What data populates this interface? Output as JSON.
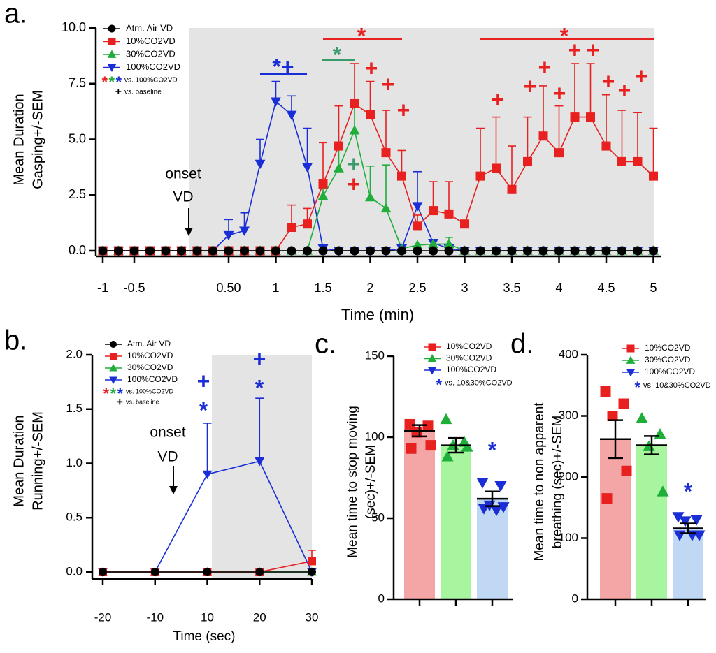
{
  "chart_data": [
    {
      "type": "line",
      "panel": "a.",
      "ylabel": [
        "Mean Duration",
        "Gasping+/-SEM"
      ],
      "xlabel": "Time (min)",
      "onset": [
        "onset",
        "VD"
      ],
      "categories": [
        "-1",
        null,
        "-0.5",
        null,
        null,
        null,
        null,
        null,
        "0.50",
        null,
        null,
        "1",
        null,
        null,
        "1.5",
        null,
        null,
        "2",
        null,
        null,
        "2.5",
        null,
        null,
        "3",
        null,
        null,
        "3.5",
        null,
        null,
        "4",
        null,
        null,
        "4.5",
        null,
        null,
        "5"
      ],
      "ylim": [
        0,
        10
      ],
      "yticks": [
        {
          "value": 0,
          "label": "0.0"
        },
        {
          "value": 2.5,
          "label": "2.5"
        },
        {
          "value": 5,
          "label": "5.0"
        },
        {
          "value": 7.5,
          "label": "7.5"
        },
        {
          "value": 10,
          "label": "10.0"
        }
      ],
      "series": [
        {
          "name": "Atm. Air VD",
          "color": "#000000",
          "marker": "circle",
          "values": [
            0,
            0,
            0,
            0,
            0,
            0,
            0,
            0,
            0,
            0,
            0,
            0,
            0,
            0,
            0,
            0,
            0,
            0,
            0,
            0,
            0,
            0,
            0,
            0,
            0,
            0,
            0,
            0,
            0,
            0,
            0,
            0,
            0,
            0,
            0,
            0
          ]
        },
        {
          "name": "10%CO2VD",
          "color": "#e8201f",
          "marker": "square",
          "values": [
            0,
            0,
            0,
            0,
            0,
            0,
            0,
            0,
            0,
            0,
            0,
            0,
            1.05,
            1.2,
            3.0,
            4.7,
            6.6,
            6.1,
            4.4,
            3.35,
            1.1,
            1.8,
            1.65,
            1.2,
            3.35,
            3.7,
            2.75,
            4.0,
            5.15,
            4.4,
            6.0,
            6.0,
            4.7,
            4.0,
            4.0,
            3.35
          ],
          "errors": [
            null,
            null,
            null,
            null,
            null,
            null,
            null,
            null,
            null,
            null,
            null,
            null,
            1.0,
            0.7,
            1.85,
            1.8,
            1.8,
            1.5,
            1.9,
            1.15,
            0.5,
            1.3,
            1.45,
            null,
            2.15,
            2.3,
            1.95,
            2.0,
            2.25,
            2.1,
            2.4,
            2.4,
            2.3,
            2.3,
            2.2,
            2.15
          ]
        },
        {
          "name": "30%CO2VD",
          "color": "#1fae3a",
          "marker": "triangle-up",
          "values": [
            0,
            0,
            0,
            0,
            0,
            0,
            0,
            0,
            0,
            0,
            0,
            0,
            0,
            0,
            2.45,
            3.7,
            5.4,
            2.4,
            1.9,
            0.1,
            0.25,
            0.3,
            0.3,
            0,
            0,
            0,
            0,
            0,
            0,
            0,
            0,
            0,
            0,
            0,
            0,
            0
          ],
          "errors": [
            null,
            null,
            null,
            null,
            null,
            null,
            null,
            null,
            null,
            null,
            null,
            null,
            null,
            null,
            0.35,
            1.1,
            1.1,
            1.4,
            1.95,
            null,
            null,
            null,
            0.3,
            null,
            null,
            null,
            null,
            null,
            null,
            null,
            null,
            null,
            null,
            null,
            null,
            null
          ]
        },
        {
          "name": "100%CO2VD",
          "color": "#1a2ed6",
          "marker": "triangle-down",
          "values": [
            0,
            0,
            0,
            0,
            0,
            0,
            0,
            0,
            0.7,
            0.9,
            3.9,
            6.7,
            6.1,
            3.75,
            0.1,
            0,
            0,
            0,
            0,
            0.1,
            2.0,
            0.35,
            0.1,
            0,
            0,
            0,
            0,
            0,
            0,
            0,
            0,
            0,
            0,
            0,
            0,
            0
          ],
          "errors": [
            null,
            null,
            null,
            null,
            null,
            null,
            null,
            null,
            0.7,
            0.8,
            1.1,
            0.9,
            0.85,
            1.75,
            null,
            null,
            null,
            null,
            null,
            null,
            1.55,
            0.1,
            null,
            null,
            null,
            null,
            null,
            null,
            null,
            null,
            null,
            null,
            null,
            null,
            null,
            null
          ]
        }
      ],
      "legend_notes": [
        {
          "marks": [
            {
              "text": "*",
              "color": "#e8201f"
            },
            {
              "text": "*",
              "color": "#1fae3a"
            },
            {
              "text": "*",
              "color": "#1a2ed6"
            }
          ],
          "text": "vs. 100%CO2VD"
        },
        {
          "marks": [
            {
              "text": "+",
              "color": "#000000"
            }
          ],
          "text": "vs. baseline"
        }
      ],
      "annotations": [
        {
          "text": "*+",
          "color": "#1a2ed6"
        },
        {
          "text": "*",
          "color": "#3a9a6a"
        },
        {
          "text": "*",
          "color": "#e8201f"
        },
        {
          "text": "*",
          "color": "#e8201f"
        },
        {
          "text": "+",
          "color": "#3a9a6a"
        },
        {
          "text": "+",
          "color": "#e8201f"
        },
        {
          "text": "+",
          "color": "#e8201f"
        },
        {
          "text": "+",
          "color": "#e8201f"
        },
        {
          "text": "+",
          "color": "#e8201f"
        },
        {
          "text": "+",
          "color": "#e8201f"
        },
        {
          "text": "+",
          "color": "#e8201f"
        },
        {
          "text": "+",
          "color": "#e8201f"
        },
        {
          "text": "+",
          "color": "#e8201f"
        },
        {
          "text": "+",
          "color": "#e8201f"
        },
        {
          "text": "+",
          "color": "#e8201f"
        },
        {
          "text": "+",
          "color": "#e8201f"
        },
        {
          "text": "+",
          "color": "#e8201f"
        },
        {
          "text": "+",
          "color": "#e8201f"
        }
      ]
    },
    {
      "type": "line",
      "panel": "b.",
      "ylabel": [
        "Mean Duration",
        "Running+/-SEM"
      ],
      "xlabel": "Time (sec)",
      "onset": [
        "onset",
        "VD"
      ],
      "categories": [
        "-20",
        "-10",
        "10",
        "20",
        "30"
      ],
      "ylim": [
        0,
        2
      ],
      "yticks": [
        {
          "value": 0,
          "label": "0.0"
        },
        {
          "value": 0.5,
          "label": "0.5"
        },
        {
          "value": 1,
          "label": "1.0"
        },
        {
          "value": 1.5,
          "label": "1.5"
        },
        {
          "value": 2,
          "label": "2.0"
        }
      ],
      "series": [
        {
          "name": "Atm. Air VD",
          "color": "#000000",
          "marker": "circle",
          "values": [
            0,
            0,
            0,
            0,
            0
          ]
        },
        {
          "name": "10%CO2VD",
          "color": "#e8201f",
          "marker": "square",
          "values": [
            0,
            0,
            0,
            0,
            0.1
          ],
          "errors": [
            null,
            null,
            null,
            null,
            0.1
          ]
        },
        {
          "name": "30%CO2VD",
          "color": "#1fae3a",
          "marker": "triangle-up",
          "values": [
            0,
            0,
            0,
            0,
            0
          ]
        },
        {
          "name": "100%CO2VD",
          "color": "#1a2ed6",
          "marker": "triangle-down",
          "values": [
            0,
            0,
            0.9,
            1.02,
            0
          ],
          "errors": [
            null,
            null,
            0.47,
            0.58,
            null
          ]
        }
      ],
      "legend_notes": [
        {
          "marks": [
            {
              "text": "*",
              "color": "#e8201f"
            },
            {
              "text": "*",
              "color": "#1fae3a"
            },
            {
              "text": "*",
              "color": "#1a2ed6"
            }
          ],
          "text": "vs. 100%CO2VD"
        },
        {
          "marks": [
            {
              "text": "+",
              "color": "#000000"
            }
          ],
          "text": "vs. baseline"
        }
      ],
      "annotations": [
        {
          "text": "+",
          "color": "#1a2ed6"
        },
        {
          "text": "*",
          "color": "#1a2ed6"
        },
        {
          "text": "+",
          "color": "#1a2ed6"
        },
        {
          "text": "*",
          "color": "#1a2ed6"
        }
      ]
    },
    {
      "type": "bar",
      "panel": "c.",
      "ylabel": [
        "Mean time to stop  moving",
        "(sec)+/-SEM"
      ],
      "ylim": [
        0,
        150
      ],
      "yticks": [
        0,
        50,
        100,
        150
      ],
      "series": [
        {
          "name": "10%CO2VD",
          "color": "#e8201f",
          "bar_color": "#f4a6a6",
          "marker": "square",
          "value": 104,
          "error": 3.5,
          "points": [
            108,
            107,
            103,
            95,
            93
          ]
        },
        {
          "name": "30%CO2VD",
          "color": "#1fae3a",
          "bar_color": "#a8f5a0",
          "marker": "triangle-up",
          "value": 95,
          "error": 4.5,
          "points": [
            111,
            97,
            95,
            94,
            88
          ]
        },
        {
          "name": "100%CO2VD",
          "color": "#1a2ed6",
          "bar_color": "#c0d8f4",
          "marker": "triangle-down",
          "value": 62,
          "error": 4.5,
          "points": [
            72,
            70,
            58,
            57,
            56,
            55
          ]
        }
      ],
      "legend_notes": [
        {
          "marks": [
            {
              "text": "*",
              "color": "#1a2ed6"
            }
          ],
          "text": "vs. 10&30%CO2VD"
        }
      ],
      "annotations": [
        {
          "text": "*",
          "color": "#1a2ed6"
        }
      ]
    },
    {
      "type": "bar",
      "panel": "d.",
      "ylabel": [
        "Mean time to non apparent",
        "breathing (sec)+/-SEM"
      ],
      "ylim": [
        0,
        400
      ],
      "yticks": [
        0,
        100,
        200,
        300,
        400
      ],
      "series": [
        {
          "name": "10%CO2VD",
          "color": "#e8201f",
          "bar_color": "#f4a6a6",
          "marker": "square",
          "value": 262,
          "error": 31,
          "points": [
            340,
            320,
            300,
            210,
            165
          ]
        },
        {
          "name": "30%CO2VD",
          "color": "#1fae3a",
          "bar_color": "#a8f5a0",
          "marker": "triangle-up",
          "value": 252,
          "error": 15,
          "points": [
            296,
            270,
            250,
            176
          ]
        },
        {
          "name": "100%CO2VD",
          "color": "#1a2ed6",
          "bar_color": "#c0d8f4",
          "marker": "triangle-down",
          "value": 116,
          "error": 8,
          "points": [
            135,
            130,
            128,
            105,
            105,
            105
          ]
        }
      ],
      "legend_notes": [
        {
          "marks": [
            {
              "text": "*",
              "color": "#1a2ed6"
            }
          ],
          "text": "vs. 10&30%CO2VD"
        }
      ],
      "annotations": [
        {
          "text": "*",
          "color": "#1a2ed6"
        }
      ]
    }
  ]
}
